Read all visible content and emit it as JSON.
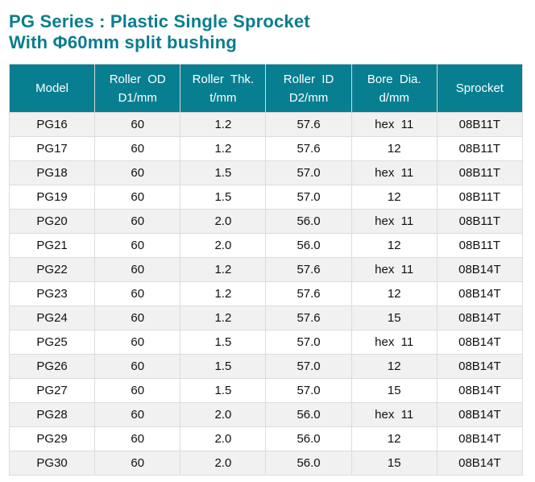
{
  "title": {
    "line1": "PG Series : Plastic Single Sprocket",
    "line2": "With Φ60mm split bushing"
  },
  "headers": [
    [
      "Model",
      ""
    ],
    [
      "Roller  OD",
      "D1/mm"
    ],
    [
      "Roller  Thk.",
      "t/mm"
    ],
    [
      "Roller  ID",
      "D2/mm"
    ],
    [
      "Bore  Dia.",
      "d/mm"
    ],
    [
      "Sprocket",
      ""
    ]
  ],
  "rows": [
    [
      "PG16",
      "60",
      "1.2",
      "57.6",
      "hex  11",
      "08B11T"
    ],
    [
      "PG17",
      "60",
      "1.2",
      "57.6",
      "12",
      "08B11T"
    ],
    [
      "PG18",
      "60",
      "1.5",
      "57.0",
      "hex  11",
      "08B11T"
    ],
    [
      "PG19",
      "60",
      "1.5",
      "57.0",
      "12",
      "08B11T"
    ],
    [
      "PG20",
      "60",
      "2.0",
      "56.0",
      "hex  11",
      "08B11T"
    ],
    [
      "PG21",
      "60",
      "2.0",
      "56.0",
      "12",
      "08B11T"
    ],
    [
      "PG22",
      "60",
      "1.2",
      "57.6",
      "hex  11",
      "08B14T"
    ],
    [
      "PG23",
      "60",
      "1.2",
      "57.6",
      "12",
      "08B14T"
    ],
    [
      "PG24",
      "60",
      "1.2",
      "57.6",
      "15",
      "08B14T"
    ],
    [
      "PG25",
      "60",
      "1.5",
      "57.0",
      "hex  11",
      "08B14T"
    ],
    [
      "PG26",
      "60",
      "1.5",
      "57.0",
      "12",
      "08B14T"
    ],
    [
      "PG27",
      "60",
      "1.5",
      "57.0",
      "15",
      "08B14T"
    ],
    [
      "PG28",
      "60",
      "2.0",
      "56.0",
      "hex  11",
      "08B14T"
    ],
    [
      "PG29",
      "60",
      "2.0",
      "56.0",
      "12",
      "08B14T"
    ],
    [
      "PG30",
      "60",
      "2.0",
      "56.0",
      "15",
      "08B14T"
    ]
  ]
}
